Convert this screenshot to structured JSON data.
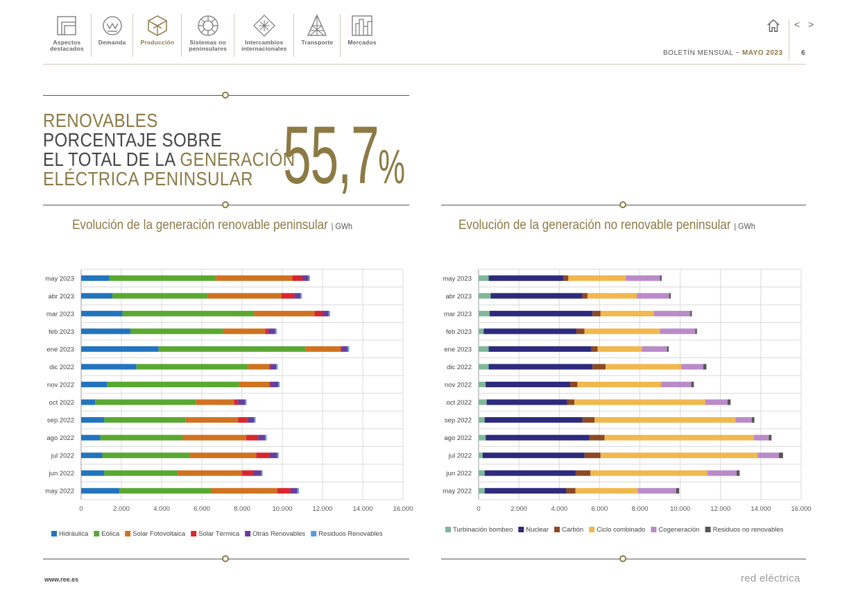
{
  "nav": {
    "items": [
      {
        "label": "Aspectos\ndestacados",
        "icon": "folded-page-icon",
        "active": false
      },
      {
        "label": "Demanda",
        "icon": "demand-meter-icon",
        "active": false
      },
      {
        "label": "Producción",
        "icon": "production-cube-icon",
        "active": true
      },
      {
        "label": "Sistemas no\npeninsulares",
        "icon": "island-wheel-icon",
        "active": false
      },
      {
        "label": "Intercambios\ninternacionales",
        "icon": "exchange-arrows-icon",
        "active": false
      },
      {
        "label": "Transporte",
        "icon": "transmission-tower-icon",
        "active": false
      },
      {
        "label": "Mercados",
        "icon": "market-bars-icon",
        "active": false
      }
    ]
  },
  "header": {
    "bulletin_prefix": "BOLETÍN MENSUAL",
    "bulletin_sep": "~",
    "bulletin_month": "MAYO 2023",
    "page_number": "6",
    "home_icon": "home-icon",
    "prev_next": "< >"
  },
  "headline": {
    "line1": "RENOVABLES",
    "line2": "PORCENTAJE SOBRE",
    "line3_a": "EL TOTAL DE LA ",
    "line3_b": "GENERACIÓN",
    "line4": "ELÉCTRICA PENINSULAR",
    "value": "55,7",
    "value_unit": "%"
  },
  "colors": {
    "gold": "#8c7a45",
    "grid": "#d9d9d9"
  },
  "chart_data": [
    {
      "type": "bar",
      "orientation": "horizontal",
      "stacked": true,
      "title": "Evolución de la generación renovable peninsular",
      "unit": "GWh",
      "categories": [
        "may 2023",
        "abr 2023",
        "mar 2023",
        "feb 2023",
        "ene 2023",
        "dic 2022",
        "nov 2022",
        "oct 2022",
        "sep 2022",
        "ago 2022",
        "jul 2022",
        "jun 2022",
        "may 2022"
      ],
      "xlim": [
        0,
        16000
      ],
      "xticks": [
        "0",
        "2.000",
        "4.000",
        "6.000",
        "8.000",
        "10.000",
        "12.000",
        "14.000",
        "16.000"
      ],
      "grid": true,
      "legend_position": "bottom",
      "series": [
        {
          "name": "Hidráulica",
          "color": "#2374bd",
          "values": [
            1400,
            1550,
            2050,
            2450,
            3850,
            2750,
            1300,
            700,
            1150,
            950,
            1050,
            1150,
            1900
          ]
        },
        {
          "name": "Eólica",
          "color": "#5aa832",
          "values": [
            5300,
            4750,
            6550,
            4600,
            7300,
            5550,
            6550,
            5000,
            4050,
            4100,
            4350,
            3650,
            4550
          ]
        },
        {
          "name": "Solar Fotovoltaica",
          "color": "#d0721f",
          "values": [
            3800,
            3650,
            3000,
            2100,
            1750,
            1050,
            1500,
            1900,
            2600,
            3150,
            3300,
            3200,
            3300
          ]
        },
        {
          "name": "Solar Térmica",
          "color": "#d9262e",
          "values": [
            500,
            650,
            400,
            150,
            50,
            50,
            50,
            200,
            450,
            600,
            650,
            550,
            650
          ]
        },
        {
          "name": "Otras Renovables",
          "color": "#6a3d9a",
          "values": [
            300,
            300,
            300,
            350,
            300,
            300,
            400,
            350,
            350,
            350,
            400,
            400,
            350
          ]
        },
        {
          "name": "Residuos Renovables",
          "color": "#5b9bd5",
          "values": [
            70,
            70,
            70,
            70,
            70,
            70,
            70,
            70,
            70,
            70,
            70,
            70,
            70
          ]
        }
      ]
    },
    {
      "type": "bar",
      "orientation": "horizontal",
      "stacked": true,
      "title": "Evolución de la generación no renovable peninsular",
      "unit": "GWh",
      "categories": [
        "may 2023",
        "abr 2023",
        "mar 2023",
        "feb 2023",
        "ene 2023",
        "dic 2022",
        "nov 2022",
        "oct 2022",
        "sep 2022",
        "ago 2022",
        "jul 2022",
        "jun 2022",
        "may 2022"
      ],
      "xlim": [
        0,
        16000
      ],
      "xticks": [
        "0",
        "2.000",
        "4.000",
        "6.000",
        "8.000",
        "10.000",
        "12.000",
        "14.000",
        "16.000"
      ],
      "grid": true,
      "legend_position": "bottom",
      "series": [
        {
          "name": "Turbinación bombeo",
          "color": "#7fb89a",
          "values": [
            500,
            600,
            550,
            250,
            500,
            500,
            350,
            400,
            300,
            350,
            200,
            300,
            300
          ]
        },
        {
          "name": "Nuclear",
          "color": "#2e2a7d",
          "values": [
            3700,
            4550,
            5100,
            4600,
            5100,
            5150,
            4200,
            4000,
            4850,
            5150,
            5050,
            4500,
            4050
          ]
        },
        {
          "name": "Carbón",
          "color": "#8b4a25",
          "values": [
            250,
            250,
            400,
            400,
            300,
            650,
            350,
            350,
            600,
            750,
            800,
            750,
            450
          ]
        },
        {
          "name": "Ciclo combinado",
          "color": "#f0b84e",
          "values": [
            2850,
            2450,
            2650,
            3750,
            2200,
            3750,
            4150,
            6500,
            7000,
            7400,
            7800,
            5800,
            3100
          ]
        },
        {
          "name": "Cogeneración",
          "color": "#b98bc9",
          "values": [
            1700,
            1600,
            1800,
            1750,
            1250,
            1100,
            1500,
            1100,
            800,
            750,
            1050,
            1450,
            1900
          ]
        },
        {
          "name": "Residuos no renovables",
          "color": "#555555",
          "values": [
            80,
            80,
            80,
            80,
            80,
            150,
            130,
            150,
            130,
            130,
            200,
            150,
            150
          ]
        }
      ]
    }
  ],
  "footer": {
    "url": "www.ree.es",
    "brand": "red eléctrica"
  }
}
